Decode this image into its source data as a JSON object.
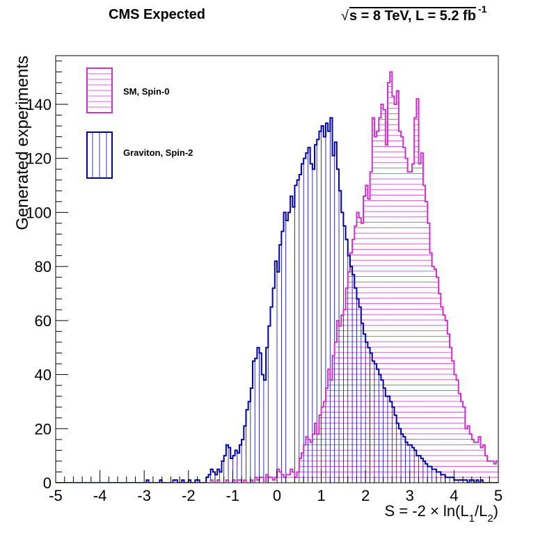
{
  "header": {
    "left": "CMS Expected",
    "right_prefix": "s = 8 TeV, L = 5.2 fb",
    "right_root": "√",
    "right_sup": "-1"
  },
  "chart_data": {
    "type": "histogram",
    "xlabel": "S = -2 × ln(L1/L2)",
    "xlabel_parts": {
      "pre": "S = -2 × ln(L",
      "sub1": "1",
      "mid": "/L",
      "sub2": "2",
      "post": ")"
    },
    "ylabel": "Generated experiments",
    "xlim": [
      -5,
      5
    ],
    "ylim": [
      0,
      158
    ],
    "x_ticks": [
      "-5",
      "-4",
      "-3",
      "-2",
      "-1",
      "0",
      "1",
      "2",
      "3",
      "4",
      "5"
    ],
    "y_ticks": [
      "0",
      "20",
      "40",
      "60",
      "80",
      "100",
      "120",
      "140"
    ],
    "bin_width": 0.05,
    "grid": false,
    "legend_position": "top-left",
    "series": [
      {
        "name": "SM, Spin-0",
        "color": "#cc33cc",
        "hatch": "horizontal",
        "bins_x_low_start": -5.0,
        "values": [
          0,
          0,
          0,
          0,
          0,
          0,
          0,
          0,
          0,
          0,
          0,
          0,
          0,
          0,
          0,
          0,
          0,
          0,
          0,
          0,
          0,
          0,
          0,
          0,
          0,
          0,
          0,
          0,
          0,
          0,
          0,
          0,
          0,
          0,
          0,
          0,
          0,
          0,
          0,
          0,
          0,
          0,
          0,
          0,
          0,
          0,
          0,
          0,
          0,
          0,
          0,
          0,
          0,
          0,
          0,
          0,
          0,
          0,
          0,
          0,
          0,
          0,
          0,
          0,
          0,
          0,
          0,
          0,
          0,
          0,
          1,
          0,
          0,
          1,
          0,
          0,
          0,
          1,
          0,
          0,
          1,
          0,
          1,
          1,
          0,
          1,
          0,
          0,
          1,
          0,
          2,
          1,
          2,
          2,
          0,
          3,
          2,
          2,
          1,
          2,
          5,
          4,
          3,
          2,
          3,
          3,
          5,
          4,
          2,
          4,
          9,
          11,
          14,
          17,
          16,
          15,
          18,
          22,
          18,
          25,
          28,
          30,
          35,
          42,
          38,
          47,
          52,
          60,
          58,
          62,
          64,
          72,
          78,
          85,
          90,
          95,
          100,
          98,
          96,
          106,
          110,
          105,
          115,
          135,
          128,
          130,
          135,
          140,
          138,
          125,
          148,
          152,
          143,
          140,
          145,
          130,
          128,
          124,
          120,
          115,
          115,
          118,
          135,
          142,
          118,
          122,
          110,
          104,
          96,
          85,
          80,
          79,
          76,
          70,
          65,
          62,
          60,
          55,
          50,
          45,
          40,
          38,
          33,
          30,
          28,
          20,
          21,
          18,
          16,
          15,
          15,
          17,
          13,
          14,
          10,
          8,
          8,
          8,
          7,
          8,
          5,
          6,
          5,
          4,
          4,
          3,
          4,
          3,
          3,
          2,
          2,
          1,
          2,
          1,
          1,
          0,
          0,
          0,
          0,
          0
        ]
      },
      {
        "name": "Graviton, Spin-2",
        "color": "#0000aa",
        "hatch": "vertical",
        "bins_x_low_start": -5.0,
        "values": [
          0,
          0,
          0,
          0,
          0,
          0,
          0,
          0,
          0,
          0,
          0,
          0,
          0,
          0,
          0,
          0,
          0,
          0,
          0,
          0,
          0,
          0,
          0,
          0,
          0,
          0,
          0,
          0,
          0,
          0,
          0,
          0,
          0,
          0,
          0,
          0,
          0,
          0,
          0,
          0,
          0,
          1,
          0,
          0,
          0,
          0,
          0,
          1,
          0,
          0,
          0,
          0,
          0,
          1,
          1,
          0,
          0,
          1,
          0,
          0,
          1,
          0,
          0,
          1,
          1,
          0,
          0,
          0,
          2,
          3,
          5,
          4,
          3,
          5,
          4,
          8,
          10,
          14,
          13,
          9,
          10,
          12,
          11,
          14,
          16,
          21,
          27,
          30,
          35,
          45,
          46,
          50,
          48,
          40,
          38,
          50,
          58,
          65,
          72,
          82,
          78,
          88,
          93,
          100,
          97,
          100,
          106,
          102,
          110,
          112,
          114,
          118,
          120,
          122,
          124,
          118,
          116,
          125,
          127,
          130,
          132,
          128,
          133,
          130,
          135,
          121,
          126,
          116,
          108,
          100,
          95,
          90,
          84,
          80,
          77,
          72,
          68,
          65,
          59,
          55,
          52,
          50,
          48,
          45,
          44,
          42,
          40,
          38,
          35,
          32,
          32,
          30,
          28,
          25,
          22,
          20,
          18,
          17,
          15,
          14,
          14,
          13,
          12,
          10,
          10,
          9,
          8,
          7,
          6,
          6,
          5,
          5,
          4,
          4,
          3,
          3,
          2,
          2,
          2,
          2,
          1,
          1,
          1,
          1,
          1,
          1,
          0,
          1,
          1,
          0,
          1,
          0,
          1,
          0,
          0,
          0,
          0,
          0,
          0,
          0,
          0,
          0,
          0,
          0,
          0,
          0,
          0,
          0,
          0,
          0,
          0,
          0,
          0,
          0,
          0,
          0,
          0,
          0,
          0,
          0
        ]
      }
    ]
  }
}
